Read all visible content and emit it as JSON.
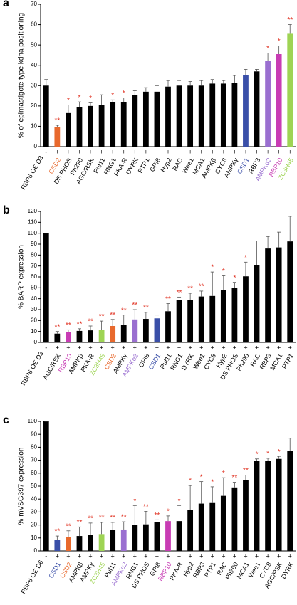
{
  "chart_data": [
    {
      "type": "bar",
      "panel_label": "a",
      "y_label": "% of epimastigote type kdna positioning",
      "sign_label": "RBP6 OE D3",
      "signs": [
        "-",
        "+",
        "+",
        "+",
        "+",
        "+",
        "+",
        "+",
        "+",
        "+",
        "+",
        "+",
        "+",
        "+",
        "+",
        "+",
        "+",
        "+",
        "+",
        "+",
        "+",
        "+",
        "+"
      ],
      "categories": [
        null,
        "CSD2",
        "DS PHOS",
        "Ph290",
        "AGC/RSK",
        "Puf11",
        "RNG1",
        "PKA-R",
        "DYRK",
        "PTP1",
        "GPI8",
        "Hyp2",
        "RAC",
        "Wee1",
        "MCA1",
        "AMPKβ",
        "CYC8",
        "AMPKγ",
        "CSD1",
        "RBP3",
        "AMPKα2",
        "RBP10",
        "ZC3H45"
      ],
      "values": [
        30,
        9.5,
        16.5,
        19.5,
        20,
        20.5,
        22,
        22,
        25.5,
        27,
        27,
        29.5,
        30,
        30,
        30,
        31,
        31,
        31.5,
        35,
        37,
        42,
        45.5,
        55.5
      ],
      "errors": [
        3,
        1,
        4,
        2.5,
        1.5,
        5,
        1,
        2,
        2,
        2,
        3,
        3,
        2.5,
        2,
        2.5,
        2,
        1.5,
        3.5,
        3,
        1,
        4,
        4,
        4.5
      ],
      "significance": [
        null,
        "**",
        "*",
        "*",
        "*",
        null,
        "*",
        "*",
        null,
        null,
        null,
        null,
        null,
        null,
        null,
        null,
        null,
        null,
        null,
        null,
        "*",
        "*",
        "**"
      ],
      "colors": [
        "#000000",
        "#e8692d",
        "#000000",
        "#000000",
        "#000000",
        "#000000",
        "#000000",
        "#000000",
        "#000000",
        "#000000",
        "#000000",
        "#000000",
        "#000000",
        "#000000",
        "#000000",
        "#000000",
        "#000000",
        "#000000",
        "#3a4fa8",
        "#000000",
        "#9a6fd0",
        "#c83cb4",
        "#9ed454"
      ],
      "ylim": [
        0,
        70
      ],
      "yticks": [
        0,
        10,
        20,
        30,
        40,
        50,
        60,
        70
      ]
    },
    {
      "type": "bar",
      "panel_label": "b",
      "y_label": "% BARP expression",
      "sign_label": "RBP6 OE D3",
      "signs": [
        "-",
        "+",
        "+",
        "+",
        "+",
        "+",
        "+",
        "+",
        "+",
        "+",
        "+",
        "+",
        "+",
        "+",
        "+",
        "+",
        "+",
        "+",
        "+",
        "+",
        "+",
        "+",
        "+"
      ],
      "categories": [
        null,
        "AGC/RSK",
        "RBP10",
        "AMPKβ",
        "PKA-R",
        "ZC3H45",
        "CSD2",
        "AMPKγ",
        "AMPKα2",
        "GPI8",
        "CSD1",
        "Puf11",
        "RNG1",
        "DYRK",
        "Wee1",
        "CYC8",
        "Hyp2",
        "DS PHOS",
        "Ph290",
        "RAC",
        "RBP3",
        "MCA1",
        "PTP1"
      ],
      "values": [
        100,
        8,
        9.5,
        10.5,
        11,
        11.5,
        15,
        16,
        21,
        21.5,
        22,
        28.5,
        38.5,
        39,
        42,
        42.5,
        48,
        50,
        60.5,
        71,
        86,
        87,
        92.5
      ],
      "errors": [
        0,
        2,
        2,
        2,
        4,
        8,
        6,
        9,
        9,
        6,
        3,
        7,
        3,
        6,
        5,
        22,
        13,
        5,
        13,
        22,
        11,
        14,
        23
      ],
      "significance": [
        null,
        "**",
        "**",
        "**",
        "**",
        "**",
        "**",
        "**",
        "**",
        "**",
        null,
        "**",
        "**",
        "**",
        "**",
        "*",
        "*",
        "*",
        "*",
        null,
        null,
        null,
        null
      ],
      "colors": [
        "#000000",
        "#000000",
        "#c83cb4",
        "#000000",
        "#000000",
        "#9ed454",
        "#e8692d",
        "#000000",
        "#9a6fd0",
        "#000000",
        "#3a4fa8",
        "#000000",
        "#000000",
        "#000000",
        "#000000",
        "#000000",
        "#000000",
        "#000000",
        "#000000",
        "#000000",
        "#000000",
        "#000000",
        "#000000"
      ],
      "ylim": [
        0,
        120
      ],
      "yticks": [
        0,
        10,
        20,
        30,
        40,
        50,
        60,
        70,
        80,
        90,
        100,
        110,
        120
      ]
    },
    {
      "type": "bar",
      "panel_label": "c",
      "y_label": "% mVSG397 expression",
      "sign_label": "RBP6 OE D6",
      "signs": [
        "-",
        "+",
        "+",
        "+",
        "+",
        "+",
        "+",
        "+",
        "+",
        "+",
        "+",
        "+",
        "+",
        "+",
        "+",
        "+",
        "+",
        "+",
        "+",
        "+",
        "+",
        "+",
        "+"
      ],
      "categories": [
        null,
        "CSD1",
        "CSD2",
        "AMPKβ",
        "AMPKγ",
        "ZC3H45",
        "Puf11",
        "AMPKα2",
        "RNG1",
        "DS PHOS",
        "GPI8",
        "RBP10",
        "PKA-R",
        "Hyp2",
        "RBP3",
        "PTP1",
        "RAC",
        "Ph290",
        "MCA1",
        "Wee1",
        "CYC8",
        "AGC/RSK",
        "DYRK"
      ],
      "values": [
        100,
        8.5,
        10.5,
        11.5,
        12.5,
        13,
        16,
        16.5,
        20,
        20.5,
        22,
        23,
        23,
        31.5,
        36.5,
        37.5,
        42.5,
        49,
        54.5,
        69.5,
        69.5,
        71,
        77
      ],
      "errors": [
        0,
        3,
        5,
        7,
        9,
        9,
        6,
        6,
        15,
        10,
        2,
        4,
        12,
        19,
        17,
        12,
        14,
        4,
        4,
        1.5,
        2,
        2,
        10
      ],
      "significance": [
        null,
        "**",
        "**",
        "**",
        "**",
        "**",
        "**",
        "**",
        "*",
        "**",
        "**",
        "*",
        "*",
        "*",
        "*",
        "*",
        "*",
        "**",
        "**",
        "*",
        "*",
        "*",
        null
      ],
      "colors": [
        "#000000",
        "#3a4fa8",
        "#e8692d",
        "#000000",
        "#000000",
        "#9ed454",
        "#000000",
        "#9a6fd0",
        "#000000",
        "#000000",
        "#000000",
        "#c83cb4",
        "#000000",
        "#000000",
        "#000000",
        "#000000",
        "#000000",
        "#000000",
        "#000000",
        "#000000",
        "#000000",
        "#000000",
        "#000000"
      ],
      "ylim": [
        0,
        100
      ],
      "yticks": [
        0,
        10,
        20,
        30,
        40,
        50,
        60,
        70,
        80,
        90,
        100
      ]
    }
  ]
}
